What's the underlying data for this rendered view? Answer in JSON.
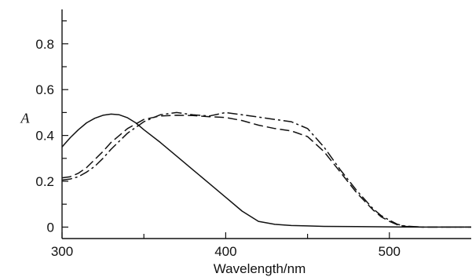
{
  "chart_data": {
    "type": "line",
    "title": "",
    "xlabel": "Wavelength/nm",
    "ylabel": "A",
    "xlim": [
      300,
      550
    ],
    "ylim": [
      -0.05,
      0.95
    ],
    "xticks": [
      300,
      400,
      500
    ],
    "xtick_labels": [
      "300",
      "400",
      "500"
    ],
    "x_minor_ticks": [
      350,
      450
    ],
    "yticks": [
      0,
      0.2,
      0.4,
      0.6,
      0.8
    ],
    "ytick_labels": [
      "0",
      "0.2",
      "0.4",
      "0.6",
      "0.8"
    ],
    "y_minor_ticks": [
      0.1,
      0.3,
      0.5,
      0.7,
      0.9
    ],
    "grid": false,
    "legend": "none",
    "series": [
      {
        "style": "solid",
        "x": [
          300,
          305,
          310,
          315,
          320,
          325,
          330,
          335,
          340,
          345,
          350,
          360,
          370,
          380,
          390,
          400,
          410,
          420,
          430,
          440,
          450,
          460,
          480,
          500,
          520,
          550
        ],
        "y": [
          0.35,
          0.39,
          0.425,
          0.455,
          0.475,
          0.488,
          0.493,
          0.49,
          0.477,
          0.455,
          0.425,
          0.37,
          0.31,
          0.25,
          0.19,
          0.13,
          0.07,
          0.025,
          0.012,
          0.007,
          0.005,
          0.003,
          0.002,
          0.001,
          0.0,
          0.0
        ]
      },
      {
        "style": "dashed",
        "x": [
          300,
          305,
          310,
          315,
          320,
          325,
          330,
          340,
          350,
          360,
          370,
          380,
          390,
          400,
          410,
          420,
          430,
          440,
          450,
          460,
          470,
          480,
          490,
          495,
          500,
          505,
          510,
          520,
          550
        ],
        "y": [
          0.215,
          0.22,
          0.235,
          0.26,
          0.295,
          0.33,
          0.37,
          0.43,
          0.47,
          0.485,
          0.488,
          0.487,
          0.482,
          0.478,
          0.465,
          0.445,
          0.43,
          0.42,
          0.395,
          0.33,
          0.24,
          0.15,
          0.075,
          0.045,
          0.025,
          0.01,
          0.003,
          0.0,
          0.0
        ]
      },
      {
        "style": "dash-dot",
        "x": [
          300,
          305,
          310,
          315,
          320,
          325,
          330,
          340,
          350,
          360,
          370,
          380,
          390,
          400,
          410,
          420,
          430,
          440,
          450,
          460,
          470,
          480,
          490,
          495,
          500,
          505,
          510,
          520,
          550
        ],
        "y": [
          0.205,
          0.21,
          0.22,
          0.24,
          0.265,
          0.3,
          0.34,
          0.41,
          0.46,
          0.49,
          0.5,
          0.49,
          0.485,
          0.5,
          0.49,
          0.48,
          0.47,
          0.46,
          0.43,
          0.35,
          0.25,
          0.16,
          0.08,
          0.05,
          0.03,
          0.012,
          0.004,
          0.0,
          0.0
        ]
      }
    ]
  }
}
